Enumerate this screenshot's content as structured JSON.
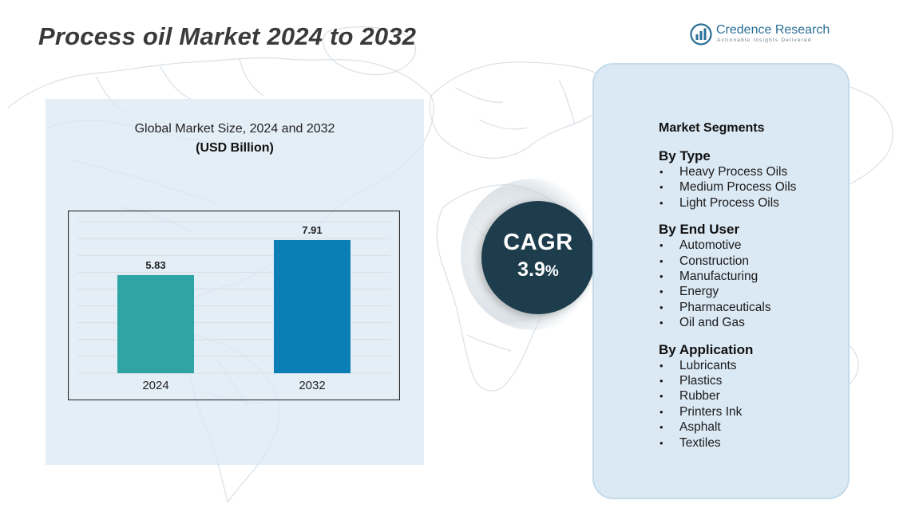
{
  "header": {
    "title": "Process oil  Market 2024  to 2032"
  },
  "brand": {
    "name": "Credence Research",
    "tagline": "Actionable Insights Delivered",
    "logo_icon": "bar-chart-circle-icon"
  },
  "chart_data": {
    "type": "bar",
    "title": "Global Market Size, 2024 and 2032",
    "subtitle": "(USD Billion)",
    "categories": [
      "2024",
      "2032"
    ],
    "values": [
      5.83,
      7.91
    ],
    "ylim": [
      0,
      9
    ],
    "grid": true,
    "colors": [
      "#2fa4a4",
      "#0a7fb5"
    ],
    "xlabel": "",
    "ylabel": ""
  },
  "cagr": {
    "label": "CAGR",
    "value": "3.9",
    "unit": "%"
  },
  "segments": {
    "title": "Market Segments",
    "groups": [
      {
        "title": "By Type",
        "items": [
          "Heavy Process Oils",
          "Medium Process Oils",
          "Light Process Oils"
        ]
      },
      {
        "title": "By End User",
        "items": [
          "Automotive",
          "Construction",
          "Manufacturing",
          "Energy",
          "Pharmaceuticals",
          "Oil and Gas"
        ]
      },
      {
        "title": "By Application",
        "items": [
          "Lubricants",
          "Plastics",
          "Rubber",
          "Printers Ink",
          "Asphalt",
          "Textiles"
        ]
      }
    ]
  }
}
